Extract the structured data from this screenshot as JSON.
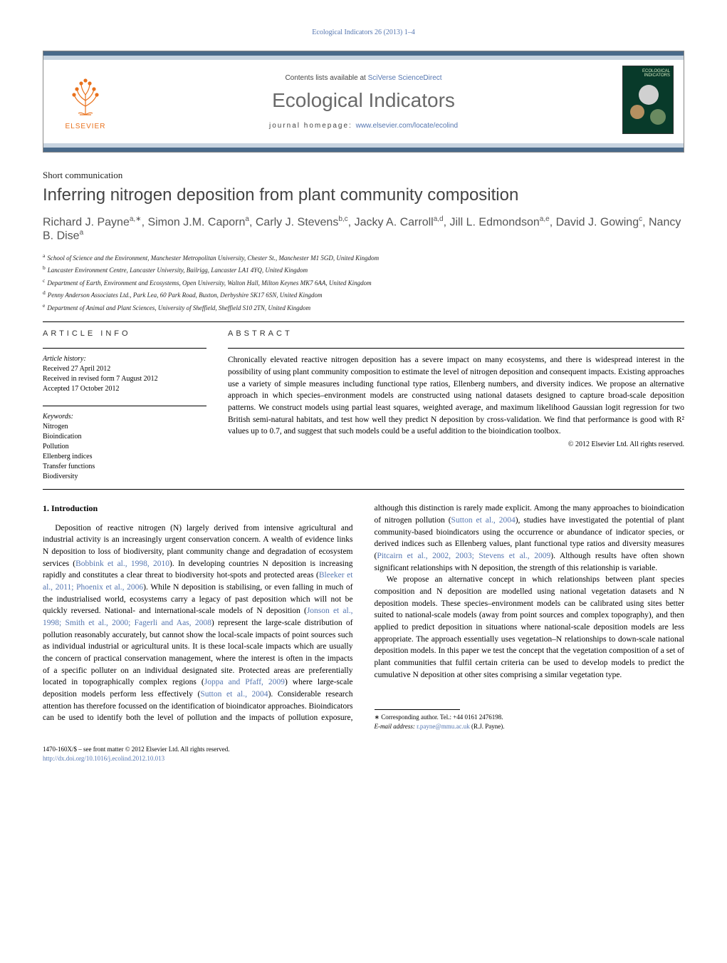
{
  "running_header": "Ecological Indicators 26 (2013) 1–4",
  "masthead": {
    "contents_prefix": "Contents lists available at ",
    "contents_link": "SciVerse ScienceDirect",
    "journal_name": "Ecological Indicators",
    "homepage_prefix": "journal homepage: ",
    "homepage_url": "www.elsevier.com/locate/ecolind",
    "publisher": "ELSEVIER",
    "cover_label": "ECOLOGICAL INDICATORS"
  },
  "article_type": "Short communication",
  "title": "Inferring nitrogen deposition from plant community composition",
  "authors_html": "Richard J. Payne<sup>a,∗</sup>, Simon J.M. Caporn<sup>a</sup>, Carly J. Stevens<sup>b,c</sup>, Jacky A. Carroll<sup>a,d</sup>, Jill L. Edmondson<sup>a,e</sup>, David J. Gowing<sup>c</sup>, Nancy B. Dise<sup>a</sup>",
  "affiliations": {
    "a": "School of Science and the Environment, Manchester Metropolitan University, Chester St., Manchester M1 5GD, United Kingdom",
    "b": "Lancaster Environment Centre, Lancaster University, Bailrigg, Lancaster LA1 4YQ, United Kingdom",
    "c": "Department of Earth, Environment and Ecosystems, Open University, Walton Hall, Milton Keynes MK7 6AA, United Kingdom",
    "d": "Penny Anderson Associates Ltd., Park Lea, 60 Park Road, Buxton, Derbyshire SK17 6SN, United Kingdom",
    "e": "Department of Animal and Plant Sciences, University of Sheffield, Sheffield S10 2TN, United Kingdom"
  },
  "info": {
    "heading": "article info",
    "history_label": "Article history:",
    "received": "Received 27 April 2012",
    "revised": "Received in revised form 7 August 2012",
    "accepted": "Accepted 17 October 2012",
    "keywords_label": "Keywords:",
    "keywords": [
      "Nitrogen",
      "Bioindication",
      "Pollution",
      "Ellenberg indices",
      "Transfer functions",
      "Biodiversity"
    ]
  },
  "abstract": {
    "heading": "abstract",
    "text": "Chronically elevated reactive nitrogen deposition has a severe impact on many ecosystems, and there is widespread interest in the possibility of using plant community composition to estimate the level of nitrogen deposition and consequent impacts. Existing approaches use a variety of simple measures including functional type ratios, Ellenberg numbers, and diversity indices. We propose an alternative approach in which species–environment models are constructed using national datasets designed to capture broad-scale deposition patterns. We construct models using partial least squares, weighted average, and maximum likelihood Gaussian logit regression for two British semi-natural habitats, and test how well they predict N deposition by cross-validation. We find that performance is good with R² values up to 0.7, and suggest that such models could be a useful addition to the bioindication toolbox.",
    "copyright": "© 2012 Elsevier Ltd. All rights reserved."
  },
  "body": {
    "heading": "1.  Introduction",
    "p1a": "Deposition of reactive nitrogen (N) largely derived from intensive agricultural and industrial activity is an increasingly urgent conservation concern. A wealth of evidence links N deposition to loss of biodiversity, plant community change and degradation of ecosystem services (",
    "p1_link1": "Bobbink et al., 1998, 2010",
    "p1b": "). In developing countries N deposition is increasing rapidly and constitutes a clear threat to biodiversity hot-spots and protected areas (",
    "p1_link2": "Bleeker et al., 2011; Phoenix et al., 2006",
    "p1c": "). While N deposition is stabilising, or even falling in much of the industrialised world, ecosystems carry a legacy of past deposition which will not be quickly reversed. National- and international-scale models of N deposition (",
    "p1_link3": "Jonson et al., 1998; Smith et al., 2000; Fagerli and Aas, 2008",
    "p1d": ") represent the large-scale distribution of pollution reasonably accurately, but cannot show the local-scale impacts of point sources such as individual industrial or agricultural units. It is these local-scale impacts which are usually the concern of practical conservation management, where the interest is often in the impacts of a specific polluter on an individual designated site. Protected areas are preferentially located in topographically complex regions (",
    "p1_link4": "Joppa and Pfaff, 2009",
    "p1e": ") where large-scale deposition models perform less effectively (",
    "p1_link5": "Sutton et al., 2004",
    "p1f": "). Considerable research attention has therefore focussed on the identification of bioindicator approaches. Bioindicators can be used to identify both the level of pollution and the impacts of pollution exposure, although this distinction is rarely made explicit. Among the many approaches to bioindication of nitrogen pollution (",
    "p1_link6": "Sutton et al., 2004",
    "p1g": "), studies have investigated the potential of plant community-based bioindicators using the occurrence or abundance of indicator species, or derived indices such as Ellenberg values, plant functional type ratios and diversity measures (",
    "p1_link7": "Pitcairn et al., 2002, 2003; Stevens et al., 2009",
    "p1h": "). Although results have often shown significant relationships with N deposition, the strength of this relationship is variable.",
    "p2": "We propose an alternative concept in which relationships between plant species composition and N deposition are modelled using national vegetation datasets and N deposition models. These species–environment models can be calibrated using sites better suited to national-scale models (away from point sources and complex topography), and then applied to predict deposition in situations where national-scale deposition models are less appropriate. The approach essentially uses vegetation–N relationships to down-scale national deposition models. In this paper we test the concept that the vegetation composition of a set of plant communities that fulfil certain criteria can be used to develop models to predict the cumulative N deposition at other sites comprising a similar vegetation type."
  },
  "footnotes": {
    "corr_label": "∗ Corresponding author. Tel.: +44 0161 2476198.",
    "email_label": "E-mail address: ",
    "email": "r.payne@mmu.ac.uk",
    "email_suffix": " (R.J. Payne)."
  },
  "doi": {
    "line1": "1470-160X/$ – see front matter © 2012 Elsevier Ltd. All rights reserved.",
    "url": "http://dx.doi.org/10.1016/j.ecolind.2012.10.013"
  },
  "colors": {
    "link": "#5576b0",
    "publisher": "#e9711c",
    "journal_gray": "#696969",
    "bar_dark": "#4a6a8a",
    "bar_light": "#c8d4e0",
    "cover_bg": "#083a2a"
  }
}
